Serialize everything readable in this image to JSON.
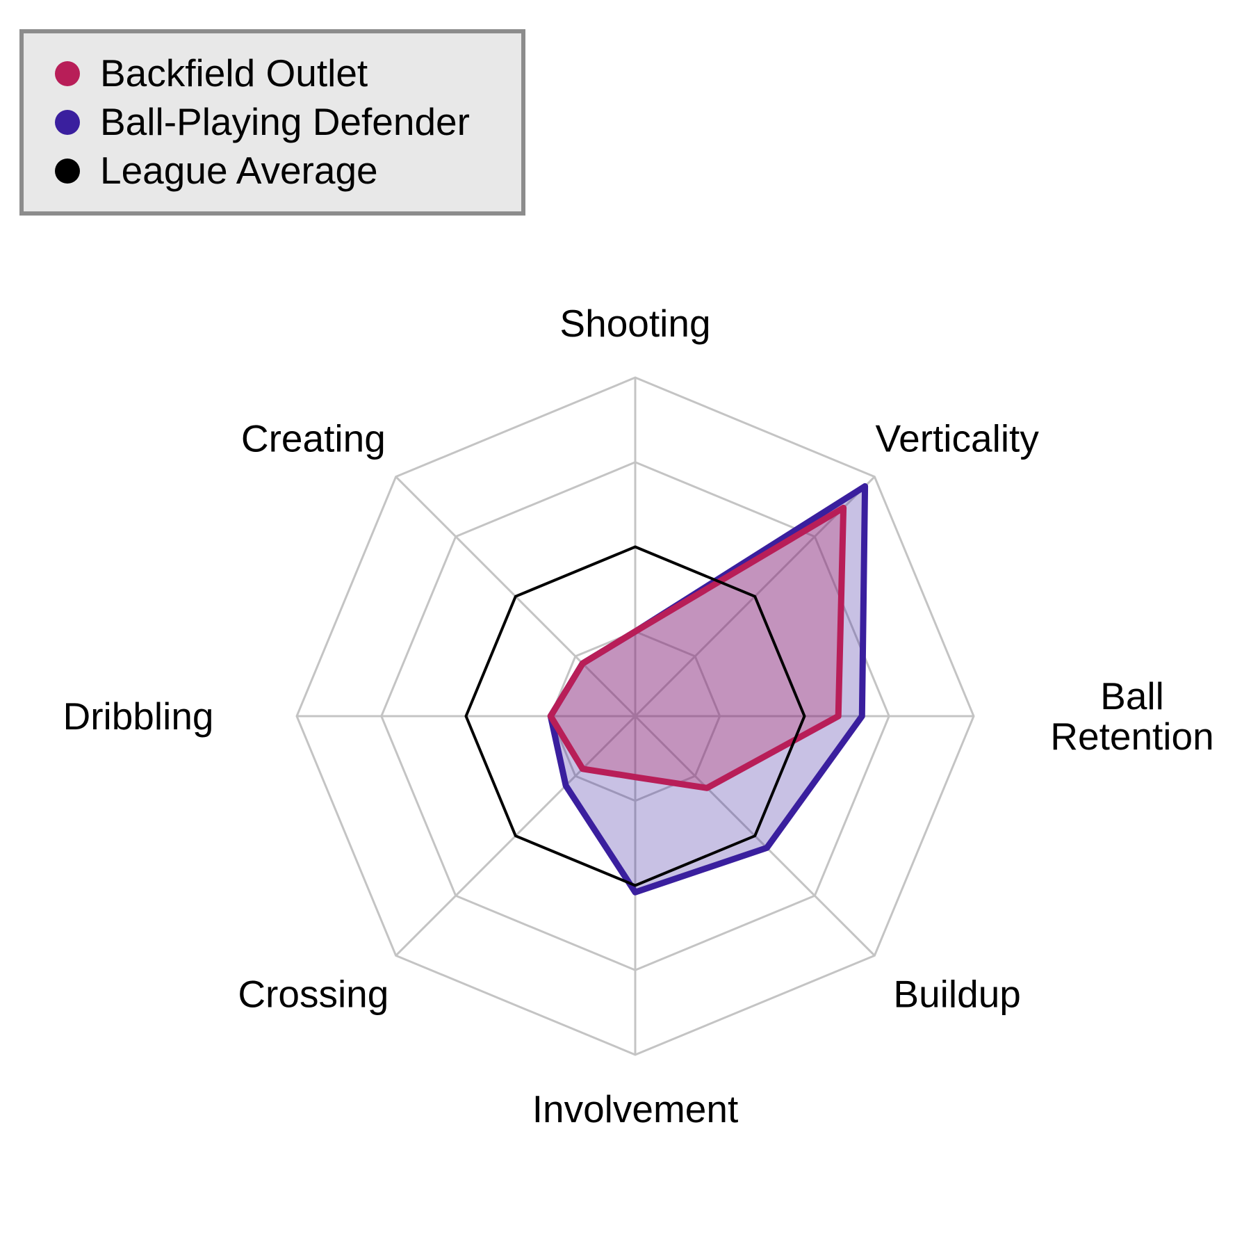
{
  "chart_data": {
    "type": "radar",
    "categories": [
      "Shooting",
      "Verticality",
      "Ball\nRetention",
      "Buildup",
      "Involvement",
      "Crossing",
      "Dribbling",
      "Creating"
    ],
    "rlim": [
      0,
      1
    ],
    "rings": 4,
    "grid": true,
    "legend_position": "top-left",
    "series": [
      {
        "name": "Backfield Outlet",
        "color": "#b81e58",
        "fill": true,
        "values": [
          0.25,
          0.87,
          0.6,
          0.3,
          0.18,
          0.22,
          0.25,
          0.22
        ]
      },
      {
        "name": "Ball-Playing Defender",
        "color": "#3a1f9e",
        "fill": true,
        "values": [
          0.25,
          0.96,
          0.67,
          0.55,
          0.52,
          0.29,
          0.25,
          0.22
        ]
      },
      {
        "name": "League Average",
        "color": "#000000",
        "fill": false,
        "values": [
          0.5,
          0.5,
          0.5,
          0.5,
          0.5,
          0.5,
          0.5,
          0.5
        ]
      }
    ]
  }
}
